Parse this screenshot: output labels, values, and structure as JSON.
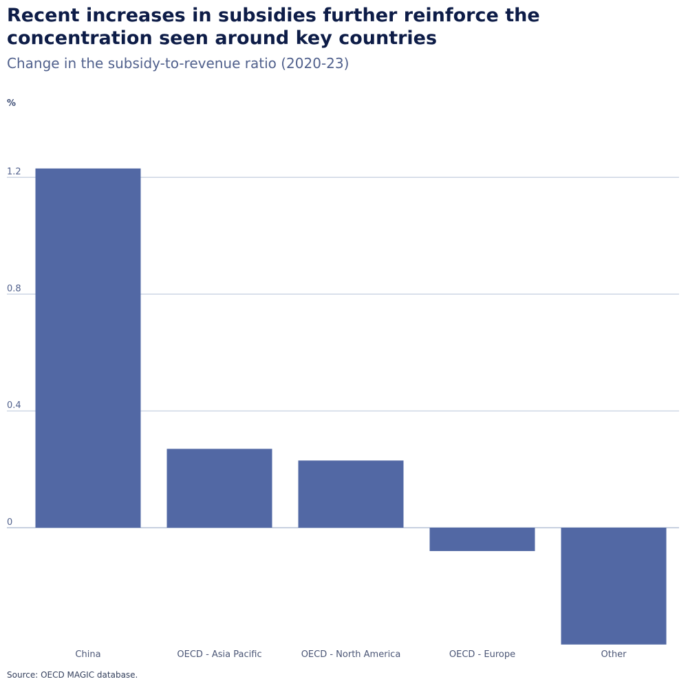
{
  "header": {
    "title": "Recent increases in subsidies further reinforce the concentration seen around key countries",
    "subtitle": "Change in the subsidy-to-revenue ratio (2020-23)",
    "unit": "%"
  },
  "footer": {
    "source": "Source: OECD MAGIC database."
  },
  "colors": {
    "bar": "#5268a4",
    "grid": "#b7c3d8",
    "zero_line": "#8fa0c0"
  },
  "chart_data": {
    "type": "bar",
    "title": "Recent increases in subsidies further reinforce the concentration seen around key countries",
    "subtitle": "Change in the subsidy-to-revenue ratio (2020-23)",
    "ylabel": "%",
    "categories": [
      "China",
      "OECD - Asia Pacific",
      "OECD - North America",
      "OECD - Europe",
      "Other"
    ],
    "values": [
      1.23,
      0.27,
      0.23,
      -0.08,
      -0.4
    ],
    "yticks": [
      0,
      0.4,
      0.8,
      1.2
    ],
    "ytick_labels": [
      "0",
      "0.4",
      "0.8",
      "1.2"
    ],
    "ylim": [
      -0.4,
      1.25
    ],
    "grid": true,
    "legend": "none"
  }
}
